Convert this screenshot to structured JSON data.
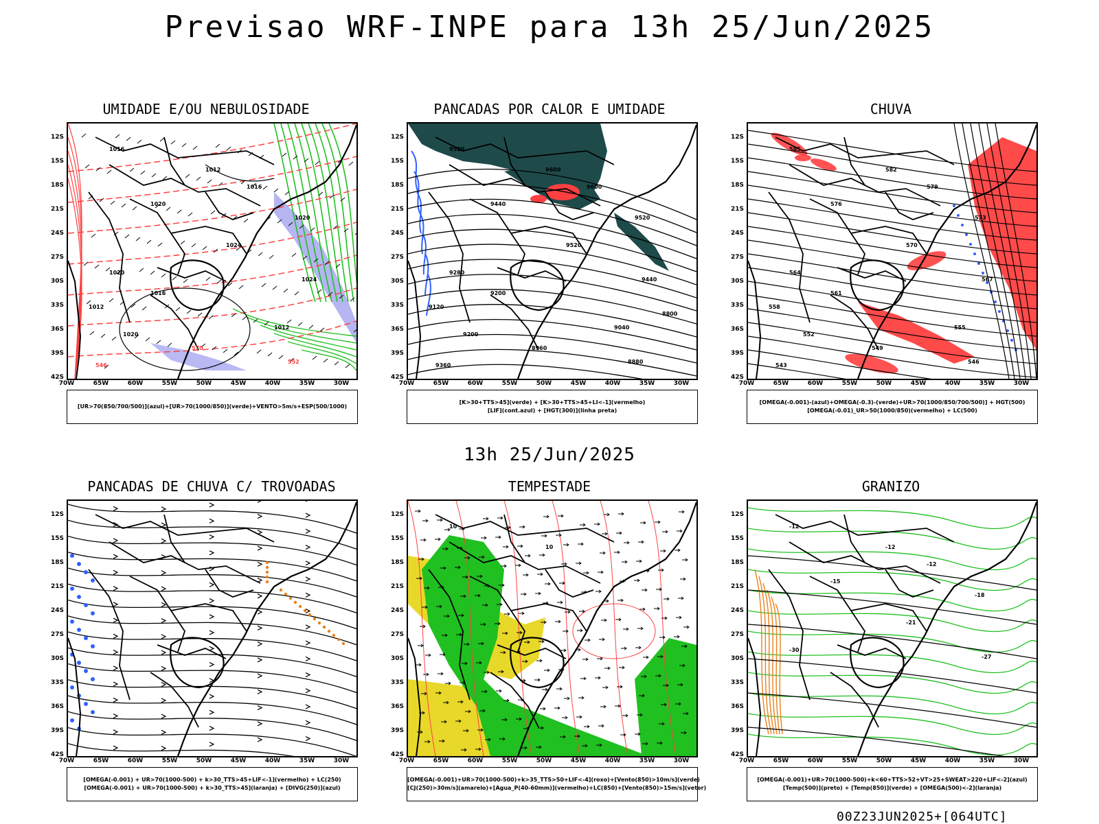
{
  "header": {
    "title": "Previsao WRF-INPE  para 13h 25/Jun/2025"
  },
  "middle": {
    "title": "13h 25/Jun/2025"
  },
  "footer": {
    "run": "00Z23JUN2025+[064UTC]"
  },
  "axes": {
    "lat_labels": [
      "12S",
      "15S",
      "18S",
      "21S",
      "24S",
      "27S",
      "30S",
      "33S",
      "36S",
      "39S",
      "42S"
    ],
    "lon_labels": [
      "70W",
      "65W",
      "60W",
      "55W",
      "50W",
      "45W",
      "40W",
      "35W",
      "30W"
    ]
  },
  "colors": {
    "red": "#ff4040",
    "green": "#20c020",
    "blue": "#3060ff",
    "teal": "#1f4a4a",
    "yellow": "#e8d82a",
    "orange": "#e8801a",
    "lavender": "#a8a8f0"
  },
  "panels": [
    {
      "id": "umidade",
      "title": "UMIDADE E/OU NEBULOSIDADE",
      "caption": [
        "[UR>70(850/700/500)](azul)+[UR>70(1000/850)](verde)+VENTO>5m/s+ESP(500/1000)"
      ],
      "contour_labels": [
        "1016",
        "1012",
        "1016",
        "1020",
        "1020",
        "1024",
        "1024",
        "1020",
        "1016",
        "1012",
        "1012",
        "1020",
        "570",
        "552",
        "546"
      ]
    },
    {
      "id": "pancadas-calor",
      "title": "PANCADAS POR CALOR E UMIDADE",
      "caption": [
        "[K>30+TTS>45](verde) + [K>30+TTS>45+LI<-1](vermelho)",
        "[LIF](cont.azul) + [HGT(300)](linha preta)"
      ],
      "contour_labels": [
        "9520",
        "9600",
        "9600",
        "9440",
        "9520",
        "9520",
        "9440",
        "9280",
        "9200",
        "9120",
        "9040",
        "9200",
        "8960",
        "8880",
        "9360",
        "8800"
      ]
    },
    {
      "id": "chuva",
      "title": "CHUVA",
      "caption": [
        "[OMEGA(-0.001)-(azul)+OMEGA(-0.3)-(verde)+UR>70(1000/850/700/500)] + HGT(500)",
        "[OMEGA(-0.01)_UR>50(1000/850)(vermelho) + LC(500)"
      ],
      "contour_labels": [
        "585",
        "582",
        "579",
        "576",
        "573",
        "570",
        "567",
        "564",
        "561",
        "558",
        "555",
        "552",
        "549",
        "546",
        "543"
      ]
    },
    {
      "id": "pancadas-trovoadas",
      "title": "PANCADAS DE CHUVA C/ TROVOADAS",
      "caption": [
        "[OMEGA(-0.001) + UR>70(1000-500) + k>30_TTS>45+LIF<-1](vermelho) + LC(250)",
        "[OMEGA(-0.001) + UR>70(1000-500) + k>30_TTS>45](laranja) + [DIVG(250)](azul)"
      ],
      "contour_labels": []
    },
    {
      "id": "tempestade",
      "title": "TEMPESTADE",
      "caption": [
        "[OMEGA(-0.001)+UR>70(1000-500)+k>35_TTS>50+LIF<-4](roxo)+[Vento(850)>10m/s](verde)",
        "[CJ(250)>30m/s](amarelo)+[Agua_P(40-60mm)](vermelho)+LC(850)+[Vento(850)>15m/s](vetor)"
      ],
      "contour_labels": [
        "10",
        "10"
      ]
    },
    {
      "id": "granizo",
      "title": "GRANIZO",
      "caption": [
        "[OMEGA(-0.001)+UR>70(1000-500)+k<60+TTS>52+VT>25+SWEAT>220+LIF<-2](azul)",
        "[Temp(500)](preto) + [Temp(850)](verde) + [OMEGA(500)<-2](laranja)"
      ],
      "contour_labels": [
        "-12",
        "-12",
        "-12",
        "-15",
        "-18",
        "-21",
        "-27",
        "-30"
      ]
    }
  ]
}
